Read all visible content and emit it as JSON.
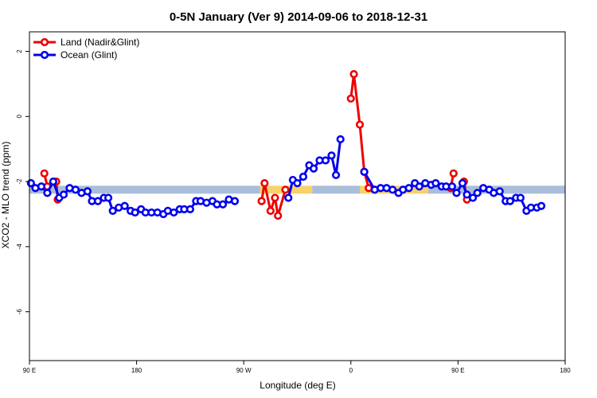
{
  "chart_data": {
    "type": "line",
    "title": "0-5N January (Ver 9)   2014-09-06 to 2018-12-31",
    "xlabel": "Longitude (deg E)",
    "ylabel": "XCO2 - MLO trend (ppm)",
    "xlim": [
      90,
      450
    ],
    "ylim": [
      -7.5,
      2.6
    ],
    "x_ticks": [
      {
        "value": 90,
        "label": "90 E"
      },
      {
        "value": 162,
        "label": "180"
      },
      {
        "value": 234,
        "label": "90 W"
      },
      {
        "value": 306,
        "label": "0"
      },
      {
        "value": 378,
        "label": "90 E"
      },
      {
        "value": 450,
        "label": "180"
      }
    ],
    "y_ticks": [
      {
        "value": 2,
        "label": "2"
      },
      {
        "value": 0,
        "label": "0"
      },
      {
        "value": -2,
        "label": "-2"
      },
      {
        "value": -4,
        "label": "-4"
      },
      {
        "value": -6,
        "label": "-6"
      }
    ],
    "legend_position": "top-left",
    "grid": false,
    "bands": [
      {
        "name": "ocean-band",
        "color": "#a9bfd9",
        "y": -2.25,
        "x_ranges": [
          [
            90,
            245
          ],
          [
            280,
            312
          ],
          [
            358,
            450
          ]
        ]
      },
      {
        "name": "land-band",
        "color": "#f7d26b",
        "y": -2.25,
        "x_ranges": [
          [
            245,
            280
          ],
          [
            312,
            358
          ]
        ]
      }
    ],
    "series": [
      {
        "name": "Land (Nadir&Glint)",
        "color": "#ee0000",
        "segments": [
          [
            [
              100,
              -1.75
            ],
            [
              102,
              -2.15
            ]
          ],
          [
            [
              108,
              -2.0
            ],
            [
              109,
              -2.55
            ]
          ],
          [
            [
              246,
              -2.6
            ],
            [
              248,
              -2.05
            ],
            [
              252,
              -2.9
            ],
            [
              255,
              -2.5
            ],
            [
              257,
              -3.05
            ],
            [
              262,
              -2.25
            ]
          ],
          [
            [
              306,
              0.55
            ],
            [
              308,
              1.3
            ],
            [
              312,
              -0.25
            ],
            [
              315,
              -1.7
            ],
            [
              318,
              -2.2
            ],
            [
              322,
              -2.25
            ]
          ],
          [
            [
              373,
              -2.2
            ],
            [
              375,
              -1.75
            ]
          ],
          [
            [
              382,
              -2.0
            ],
            [
              384,
              -2.55
            ]
          ]
        ]
      },
      {
        "name": "Ocean (Glint)",
        "color": "#0000ee",
        "segments": [
          [
            [
              91,
              -2.05
            ],
            [
              94,
              -2.2
            ],
            [
              98,
              -2.15
            ],
            [
              102,
              -2.35
            ],
            [
              106,
              -2.0
            ],
            [
              110,
              -2.5
            ],
            [
              113,
              -2.4
            ],
            [
              117,
              -2.2
            ],
            [
              121,
              -2.25
            ],
            [
              125,
              -2.35
            ],
            [
              129,
              -2.3
            ],
            [
              132,
              -2.6
            ],
            [
              136,
              -2.6
            ],
            [
              140,
              -2.5
            ],
            [
              143,
              -2.5
            ],
            [
              146,
              -2.9
            ],
            [
              150,
              -2.8
            ],
            [
              154,
              -2.75
            ],
            [
              158,
              -2.9
            ],
            [
              161,
              -2.95
            ],
            [
              165,
              -2.85
            ],
            [
              168,
              -2.95
            ],
            [
              172,
              -2.95
            ],
            [
              176,
              -2.95
            ],
            [
              180,
              -3.0
            ],
            [
              183,
              -2.9
            ],
            [
              187,
              -2.95
            ],
            [
              191,
              -2.85
            ],
            [
              194,
              -2.85
            ],
            [
              198,
              -2.85
            ],
            [
              202,
              -2.6
            ],
            [
              205,
              -2.6
            ],
            [
              209,
              -2.65
            ],
            [
              213,
              -2.6
            ],
            [
              216,
              -2.7
            ],
            [
              220,
              -2.7
            ],
            [
              224,
              -2.55
            ],
            [
              228,
              -2.6
            ]
          ],
          [
            [
              264,
              -2.5
            ],
            [
              267,
              -1.95
            ],
            [
              270,
              -2.05
            ],
            [
              274,
              -1.85
            ],
            [
              278,
              -1.5
            ],
            [
              281,
              -1.6
            ],
            [
              285,
              -1.35
            ],
            [
              289,
              -1.35
            ],
            [
              293,
              -1.2
            ],
            [
              296,
              -1.8
            ],
            [
              299,
              -0.7
            ]
          ],
          [
            [
              315,
              -1.7
            ],
            [
              322,
              -2.25
            ],
            [
              326,
              -2.2
            ],
            [
              330,
              -2.2
            ],
            [
              334,
              -2.25
            ],
            [
              338,
              -2.35
            ],
            [
              341,
              -2.25
            ],
            [
              345,
              -2.2
            ],
            [
              349,
              -2.05
            ],
            [
              352,
              -2.15
            ],
            [
              356,
              -2.05
            ],
            [
              360,
              -2.1
            ],
            [
              363,
              -2.05
            ],
            [
              367,
              -2.15
            ],
            [
              370,
              -2.15
            ],
            [
              374,
              -2.15
            ],
            [
              377,
              -2.35
            ],
            [
              381,
              -2.05
            ],
            [
              384,
              -2.4
            ],
            [
              388,
              -2.5
            ],
            [
              391,
              -2.35
            ],
            [
              395,
              -2.2
            ],
            [
              399,
              -2.25
            ],
            [
              402,
              -2.35
            ],
            [
              406,
              -2.3
            ],
            [
              410,
              -2.6
            ],
            [
              413,
              -2.6
            ],
            [
              417,
              -2.5
            ],
            [
              420,
              -2.5
            ],
            [
              424,
              -2.9
            ],
            [
              427,
              -2.8
            ],
            [
              431,
              -2.8
            ],
            [
              434,
              -2.75
            ]
          ]
        ]
      }
    ]
  }
}
